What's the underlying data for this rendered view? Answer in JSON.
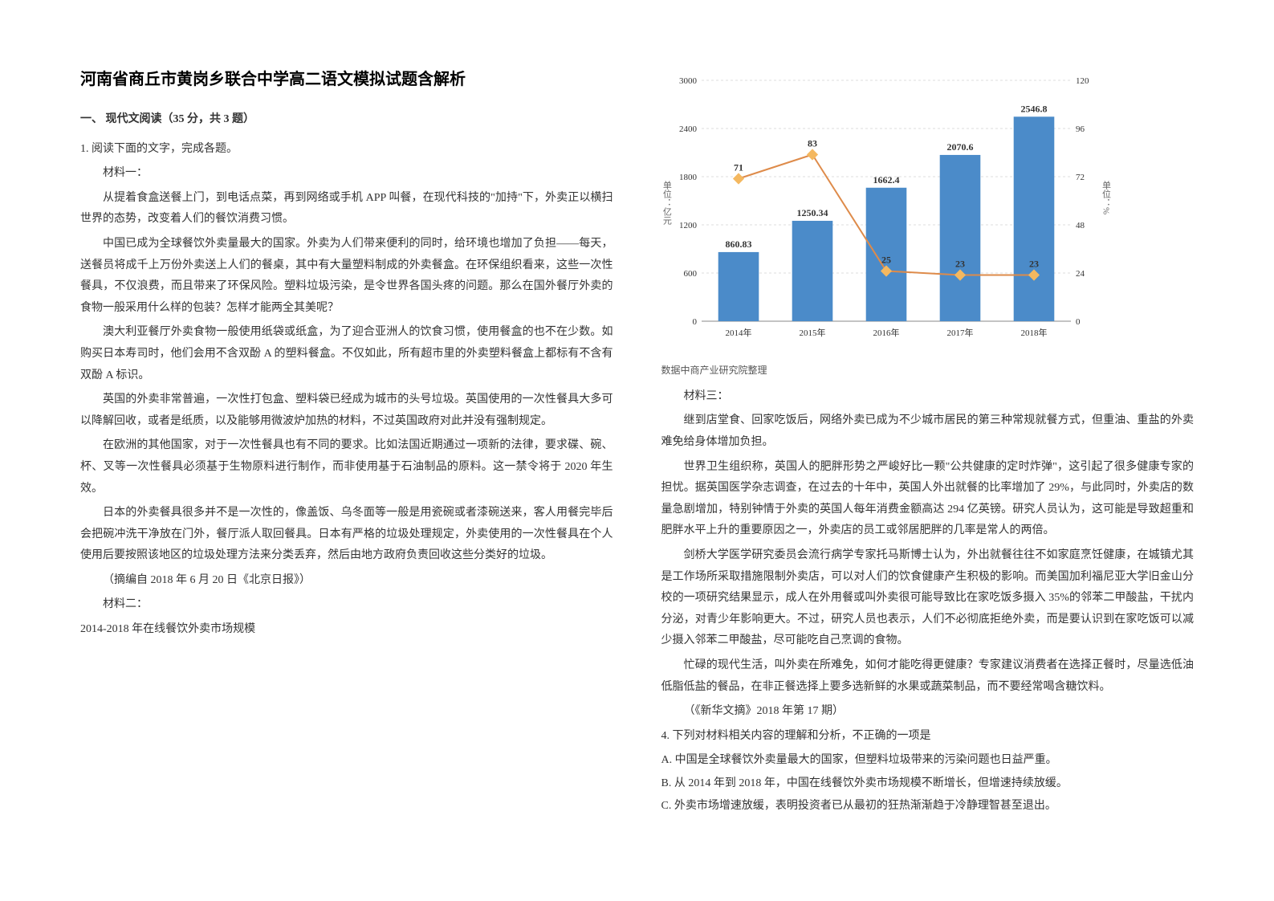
{
  "title": "河南省商丘市黄岗乡联合中学高二语文模拟试题含解析",
  "section1_head": "一、 现代文阅读（35 分，共 3 题）",
  "q1_lead": "1. 阅读下面的文字，完成各题。",
  "mat1_label": "材料一：",
  "mat1_p1": "从提着食盒送餐上门，到电话点菜，再到网络或手机 APP 叫餐，在现代科技的\"加持\"下，外卖正以横扫世界的态势，改变着人们的餐饮消费习惯。",
  "mat1_p2": "中国已成为全球餐饮外卖量最大的国家。外卖为人们带来便利的同时，给环境也增加了负担——每天，送餐员将成千上万份外卖送上人们的餐桌，其中有大量塑料制成的外卖餐盒。在环保组织看来，这些一次性餐具，不仅浪费，而且带来了环保风险。塑料垃圾污染，是令世界各国头疼的问题。那么在国外餐厅外卖的食物一般采用什么样的包装？怎样才能两全其美呢？",
  "mat1_p3": "澳大利亚餐厅外卖食物一般使用纸袋或纸盒，为了迎合亚洲人的饮食习惯，使用餐盒的也不在少数。如购买日本寿司时，他们会用不含双酚 A 的塑料餐盒。不仅如此，所有超市里的外卖塑料餐盒上都标有不含有双酚 A 标识。",
  "mat1_p4": "英国的外卖非常普遍，一次性打包盒、塑料袋已经成为城市的头号垃圾。英国使用的一次性餐具大多可以降解回收，或者是纸质，以及能够用微波炉加热的材料，不过英国政府对此并没有强制规定。",
  "mat1_p5": "在欧洲的其他国家，对于一次性餐具也有不同的要求。比如法国近期通过一项新的法律，要求碟、碗、杯、叉等一次性餐具必须基于生物原料进行制作，而非使用基于石油制品的原料。这一禁令将于 2020 年生效。",
  "mat1_p6": "日本的外卖餐具很多并不是一次性的，像盖饭、乌冬面等一般是用瓷碗或者漆碗送来，客人用餐完毕后会把碗冲洗干净放在门外，餐厅派人取回餐具。日本有严格的垃圾处理规定，外卖使用的一次性餐具在个人使用后要按照该地区的垃圾处理方法来分类丢弃，然后由地方政府负责回收这些分类好的垃圾。",
  "mat1_src": "（摘编自 2018 年 6 月 20 日《北京日报》）",
  "mat2_label": "材料二：",
  "mat2_caption": "2014-2018 年在线餐饮外卖市场规模",
  "chart": {
    "type": "bar+line",
    "categories": [
      "2014年",
      "2015年",
      "2016年",
      "2017年",
      "2018年"
    ],
    "bar_values": [
      860.83,
      1250.34,
      1662.4,
      2070.6,
      2546.8
    ],
    "line_values": [
      71,
      83,
      25,
      23,
      23
    ],
    "y_left": {
      "min": 0,
      "max": 3000,
      "step": 600,
      "label": "单位：亿元"
    },
    "y_right": {
      "min": 0,
      "max": 120,
      "step": 24,
      "label": "单位：%"
    },
    "bar_color": "#4b8bc9",
    "line_color": "#de8b4a",
    "marker_color": "#f4b860",
    "text_color": "#333333",
    "grid_color": "#dddddd",
    "axis_color": "#888888",
    "background_color": "#ffffff",
    "bar_width_ratio": 0.55,
    "label_fontsize": 11,
    "value_fontsize": 12,
    "title_fontsize": 14
  },
  "chart_footer": "数据中商产业研究院整理",
  "mat3_label": "材料三：",
  "mat3_p1": "继到店堂食、回家吃饭后，网络外卖已成为不少城市居民的第三种常规就餐方式，但重油、重盐的外卖难免给身体增加负担。",
  "mat3_p2": "世界卫生组织称，英国人的肥胖形势之严峻好比一颗\"公共健康的定时炸弹\"，这引起了很多健康专家的担忧。据英国医学杂志调查，在过去的十年中，英国人外出就餐的比率增加了 29%，与此同时，外卖店的数量急剧增加，特别钟情于外卖的英国人每年消费金额高达 294 亿英镑。研究人员认为，这可能是导致超重和肥胖水平上升的重要原因之一，外卖店的员工或邻居肥胖的几率是常人的两倍。",
  "mat3_p3": "剑桥大学医学研究委员会流行病学专家托马斯博士认为，外出就餐往往不如家庭烹饪健康，在城镇尤其是工作场所采取措施限制外卖店，可以对人们的饮食健康产生积极的影响。而美国加利福尼亚大学旧金山分校的一项研究结果显示，成人在外用餐或叫外卖很可能导致比在家吃饭多摄入 35%的邻苯二甲酸盐，干扰内分泌，对青少年影响更大。不过，研究人员也表示，人们不必彻底拒绝外卖，而是要认识到在家吃饭可以减少摄入邻苯二甲酸盐，尽可能吃自己烹调的食物。",
  "mat3_p4": "忙碌的现代生活，叫外卖在所难免，如何才能吃得更健康？专家建议消费者在选择正餐时，尽量选低油低脂低盐的餐品，在非正餐选择上要多选新鲜的水果或蔬菜制品，而不要经常喝含糖饮料。",
  "mat3_src": "（《新华文摘》2018 年第 17 期）",
  "q4_stem": "4. 下列对材料相关内容的理解和分析，不正确的一项是",
  "q4_A": "A.  中国是全球餐饮外卖量最大的国家，但塑料垃圾带来的污染问题也日益严重。",
  "q4_B": "B.  从 2014 年到 2018 年，中国在线餐饮外卖市场规模不断增长，但增速持续放缓。",
  "q4_C": "C.  外卖市场增速放缓，表明投资者已从最初的狂热渐渐趋于冷静理智甚至退出。"
}
